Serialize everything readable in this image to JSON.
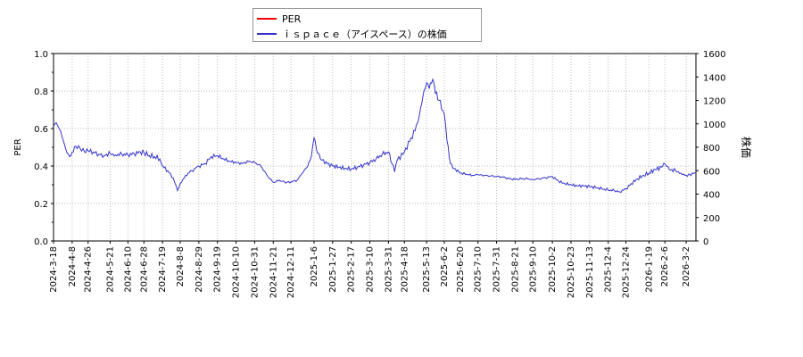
{
  "chart_data": {
    "type": "line",
    "legend": {
      "position": "top-center",
      "entries": [
        {
          "label": "PER",
          "color": "#ff0000"
        },
        {
          "label": "ｉｓｐａｃｅ（アイスペース）の株価",
          "color": "#3333cc"
        }
      ]
    },
    "y_left": {
      "label": "PER",
      "range": [
        0,
        1.0
      ],
      "ticks": [
        "0.0",
        "0.2",
        "0.4",
        "0.6",
        "0.8",
        "1.0"
      ]
    },
    "y_right": {
      "label": "株価",
      "range": [
        0,
        1600
      ],
      "ticks": [
        "0",
        "200",
        "400",
        "600",
        "800",
        "1000",
        "1200",
        "1400",
        "1600"
      ]
    },
    "x_range": [
      "2024-03-18",
      "2026-03-13"
    ],
    "x_ticks": [
      "2024-3-18",
      "2024-4-8",
      "2024-4-26",
      "2024-5-21",
      "2024-6-10",
      "2024-6-28",
      "2024-7-19",
      "2024-8-8",
      "2024-8-29",
      "2024-9-19",
      "2024-10-10",
      "2024-10-31",
      "2024-11-21",
      "2024-12-11",
      "2025-1-6",
      "2025-1-27",
      "2025-2-17",
      "2025-3-10",
      "2025-3-31",
      "2025-4-18",
      "2025-5-13",
      "2025-6-2",
      "2025-6-20",
      "2025-7-10",
      "2025-7-31",
      "2025-8-21",
      "2025-9-10",
      "2025-10-2",
      "2025-10-23",
      "2025-11-13",
      "2025-12-4",
      "2025-12-24",
      "2026-1-19",
      "2026-2-6",
      "2026-3-2"
    ],
    "grid": true,
    "series": [
      {
        "name": "PER",
        "axis": "left",
        "color": "#ff0000",
        "points": []
      },
      {
        "name": "ｉｓｐａｃｅ（アイスペース）の株価",
        "axis": "right",
        "color": "#3333cc",
        "points": [
          [
            "2024-03-18",
            980
          ],
          [
            "2024-03-21",
            1010
          ],
          [
            "2024-03-26",
            940
          ],
          [
            "2024-04-01",
            780
          ],
          [
            "2024-04-05",
            720
          ],
          [
            "2024-04-08",
            760
          ],
          [
            "2024-04-12",
            810
          ],
          [
            "2024-04-17",
            790
          ],
          [
            "2024-04-22",
            760
          ],
          [
            "2024-04-26",
            770
          ],
          [
            "2024-05-02",
            760
          ],
          [
            "2024-05-08",
            740
          ],
          [
            "2024-05-14",
            730
          ],
          [
            "2024-05-21",
            745
          ],
          [
            "2024-05-27",
            735
          ],
          [
            "2024-06-03",
            740
          ],
          [
            "2024-06-10",
            735
          ],
          [
            "2024-06-17",
            745
          ],
          [
            "2024-06-24",
            760
          ],
          [
            "2024-06-28",
            755
          ],
          [
            "2024-07-04",
            730
          ],
          [
            "2024-07-10",
            720
          ],
          [
            "2024-07-16",
            700
          ],
          [
            "2024-07-19",
            640
          ],
          [
            "2024-07-25",
            600
          ],
          [
            "2024-07-31",
            540
          ],
          [
            "2024-08-05",
            430
          ],
          [
            "2024-08-08",
            490
          ],
          [
            "2024-08-14",
            560
          ],
          [
            "2024-08-21",
            600
          ],
          [
            "2024-08-29",
            640
          ],
          [
            "2024-09-05",
            660
          ],
          [
            "2024-09-12",
            720
          ],
          [
            "2024-09-19",
            730
          ],
          [
            "2024-09-26",
            700
          ],
          [
            "2024-10-03",
            680
          ],
          [
            "2024-10-10",
            670
          ],
          [
            "2024-10-17",
            660
          ],
          [
            "2024-10-24",
            680
          ],
          [
            "2024-10-31",
            670
          ],
          [
            "2024-11-07",
            640
          ],
          [
            "2024-11-14",
            560
          ],
          [
            "2024-11-21",
            500
          ],
          [
            "2024-11-28",
            520
          ],
          [
            "2024-12-04",
            500
          ],
          [
            "2024-12-11",
            505
          ],
          [
            "2024-12-18",
            520
          ],
          [
            "2024-12-24",
            580
          ],
          [
            "2024-12-30",
            640
          ],
          [
            "2025-01-03",
            720
          ],
          [
            "2025-01-06",
            880
          ],
          [
            "2025-01-10",
            750
          ],
          [
            "2025-01-15",
            690
          ],
          [
            "2025-01-21",
            660
          ],
          [
            "2025-01-27",
            640
          ],
          [
            "2025-02-03",
            630
          ],
          [
            "2025-02-10",
            620
          ],
          [
            "2025-02-17",
            615
          ],
          [
            "2025-02-24",
            630
          ],
          [
            "2025-03-03",
            650
          ],
          [
            "2025-03-10",
            670
          ],
          [
            "2025-03-17",
            700
          ],
          [
            "2025-03-24",
            740
          ],
          [
            "2025-03-31",
            760
          ],
          [
            "2025-04-04",
            660
          ],
          [
            "2025-04-07",
            590
          ],
          [
            "2025-04-10",
            690
          ],
          [
            "2025-04-18",
            760
          ],
          [
            "2025-04-24",
            850
          ],
          [
            "2025-04-30",
            940
          ],
          [
            "2025-05-05",
            1080
          ],
          [
            "2025-05-09",
            1240
          ],
          [
            "2025-05-13",
            1350
          ],
          [
            "2025-05-16",
            1300
          ],
          [
            "2025-05-20",
            1380
          ],
          [
            "2025-05-23",
            1260
          ],
          [
            "2025-05-27",
            1200
          ],
          [
            "2025-06-02",
            1080
          ],
          [
            "2025-06-05",
            860
          ],
          [
            "2025-06-09",
            660
          ],
          [
            "2025-06-13",
            620
          ],
          [
            "2025-06-20",
            580
          ],
          [
            "2025-06-27",
            570
          ],
          [
            "2025-07-04",
            560
          ],
          [
            "2025-07-10",
            565
          ],
          [
            "2025-07-17",
            560
          ],
          [
            "2025-07-24",
            555
          ],
          [
            "2025-07-31",
            550
          ],
          [
            "2025-08-07",
            545
          ],
          [
            "2025-08-14",
            530
          ],
          [
            "2025-08-21",
            525
          ],
          [
            "2025-08-28",
            530
          ],
          [
            "2025-09-04",
            530
          ],
          [
            "2025-09-10",
            525
          ],
          [
            "2025-09-17",
            530
          ],
          [
            "2025-09-24",
            540
          ],
          [
            "2025-10-02",
            550
          ],
          [
            "2025-10-09",
            510
          ],
          [
            "2025-10-16",
            490
          ],
          [
            "2025-10-23",
            480
          ],
          [
            "2025-10-30",
            470
          ],
          [
            "2025-11-06",
            470
          ],
          [
            "2025-11-13",
            465
          ],
          [
            "2025-11-20",
            455
          ],
          [
            "2025-11-27",
            445
          ],
          [
            "2025-12-04",
            435
          ],
          [
            "2025-12-11",
            430
          ],
          [
            "2025-12-17",
            420
          ],
          [
            "2025-12-24",
            445
          ],
          [
            "2025-12-30",
            490
          ],
          [
            "2026-01-06",
            530
          ],
          [
            "2026-01-13",
            560
          ],
          [
            "2026-01-19",
            580
          ],
          [
            "2026-01-26",
            610
          ],
          [
            "2026-02-02",
            630
          ],
          [
            "2026-02-06",
            660
          ],
          [
            "2026-02-11",
            610
          ],
          [
            "2026-02-18",
            600
          ],
          [
            "2026-02-24",
            580
          ],
          [
            "2026-03-02",
            560
          ],
          [
            "2026-03-06",
            570
          ],
          [
            "2026-03-13",
            580
          ]
        ]
      }
    ]
  }
}
